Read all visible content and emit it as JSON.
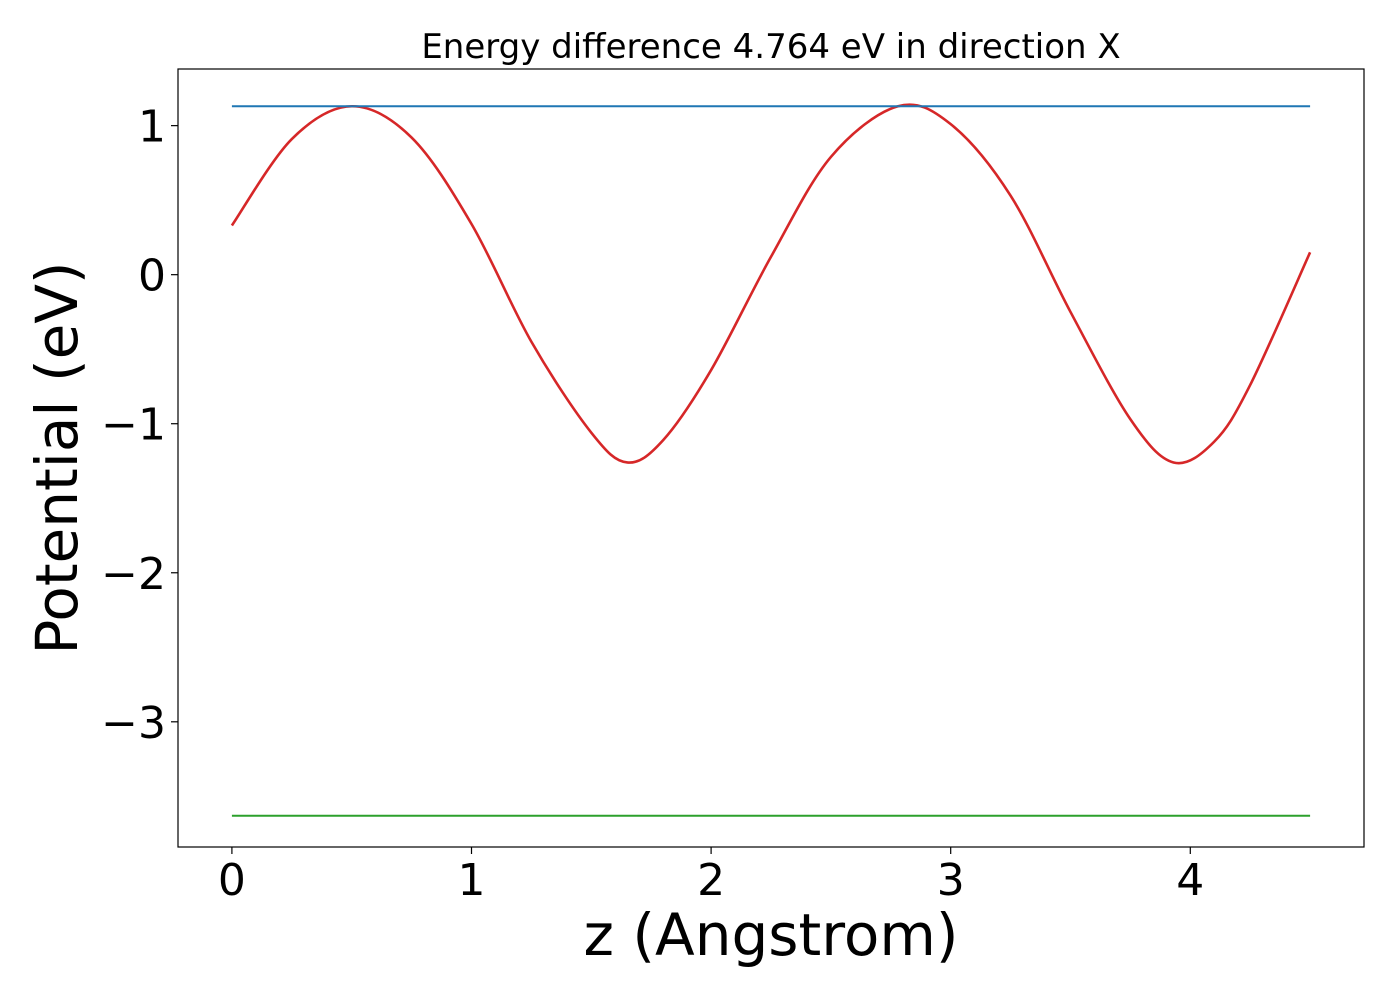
{
  "chart_data": {
    "type": "line",
    "title": "Energy difference 4.764 eV in direction X",
    "xlabel": "z (Angstrom)",
    "ylabel": "Potential (eV)",
    "xlim": [
      -0.225,
      4.725
    ],
    "ylim": [
      -3.84,
      1.38
    ],
    "x_ticks": [
      0,
      1,
      2,
      3,
      4
    ],
    "x_tick_labels": [
      "0",
      "1",
      "2",
      "3",
      "4"
    ],
    "y_ticks": [
      1,
      0,
      -1,
      -2,
      -3
    ],
    "y_tick_labels": [
      "1",
      "0",
      "−1",
      "−2",
      "−3"
    ],
    "grid": false,
    "legend": "none",
    "series": [
      {
        "color": "#d62728",
        "style": "curve",
        "x": [
          0,
          0.25,
          0.5,
          0.75,
          1.0,
          1.25,
          1.5,
          1.65,
          1.8,
          2.0,
          2.25,
          2.5,
          2.78,
          3.0,
          3.25,
          3.5,
          3.75,
          3.93,
          4.1,
          4.25,
          4.5
        ],
        "y": [
          0.33,
          0.91,
          1.13,
          0.92,
          0.34,
          -0.45,
          -1.06,
          -1.26,
          -1.11,
          -0.64,
          0.12,
          0.79,
          1.13,
          1.01,
          0.53,
          -0.25,
          -0.97,
          -1.26,
          -1.12,
          -0.74,
          0.15
        ]
      },
      {
        "color": "#1f77b4",
        "style": "flat",
        "x": [
          0,
          4.5
        ],
        "y": [
          1.13,
          1.13
        ]
      },
      {
        "color": "#2ca02c",
        "style": "flat",
        "x": [
          0,
          4.5
        ],
        "y": [
          -3.63,
          -3.63
        ]
      }
    ]
  }
}
